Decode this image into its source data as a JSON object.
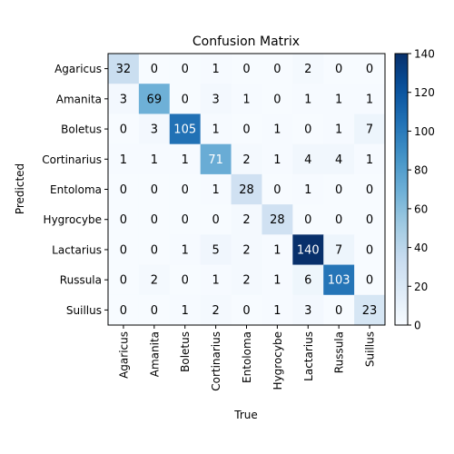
{
  "chart_data": {
    "type": "heatmap",
    "title": "Confusion Matrix",
    "xlabel": "True",
    "ylabel": "Predicted",
    "labels": [
      "Agaricus",
      "Amanita",
      "Boletus",
      "Cortinarius",
      "Entoloma",
      "Hygrocybe",
      "Lactarius",
      "Russula",
      "Suillus"
    ],
    "matrix": [
      [
        32,
        0,
        0,
        1,
        0,
        0,
        2,
        0,
        0
      ],
      [
        3,
        69,
        0,
        3,
        1,
        0,
        1,
        1,
        1
      ],
      [
        0,
        3,
        105,
        1,
        0,
        1,
        0,
        1,
        7
      ],
      [
        1,
        1,
        1,
        71,
        2,
        1,
        4,
        4,
        1
      ],
      [
        0,
        0,
        0,
        1,
        28,
        0,
        1,
        0,
        0
      ],
      [
        0,
        0,
        0,
        0,
        2,
        28,
        0,
        0,
        0
      ],
      [
        0,
        0,
        1,
        5,
        2,
        1,
        140,
        7,
        0
      ],
      [
        0,
        2,
        0,
        1,
        2,
        1,
        6,
        103,
        0
      ],
      [
        0,
        0,
        1,
        2,
        0,
        1,
        3,
        0,
        23
      ]
    ],
    "colorbar": {
      "min": 0,
      "max": 140,
      "ticks": [
        0,
        20,
        40,
        60,
        80,
        100,
        120,
        140
      ],
      "colormap": "Blues"
    }
  }
}
